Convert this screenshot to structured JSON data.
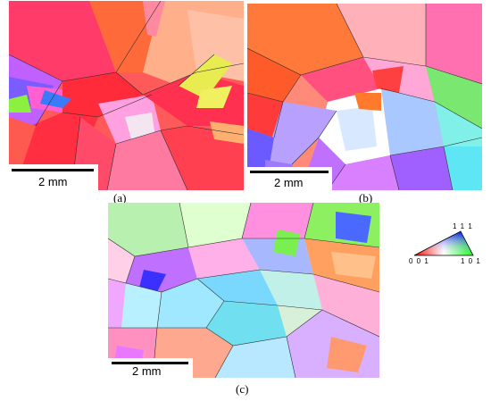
{
  "panels": [
    {
      "label": "(a)",
      "scale_text": "2 mm"
    },
    {
      "label": "(b)",
      "scale_text": "2 mm"
    },
    {
      "label": "(c)",
      "scale_text": "2 mm"
    }
  ],
  "legend": {
    "top": "1 1 1",
    "left": "0 0 1",
    "right": "1 0 1"
  },
  "colors": {
    "red": "#ff2a3a",
    "magenta": "#ff40c0",
    "orange": "#ff8c3a",
    "pink": "#ff9ad2",
    "purple": "#b070ff",
    "blue": "#5a6cff",
    "cyan": "#6fe6f0",
    "green": "#7df04a",
    "yellow": "#e8f060",
    "lavender": "#c8a8ff"
  }
}
